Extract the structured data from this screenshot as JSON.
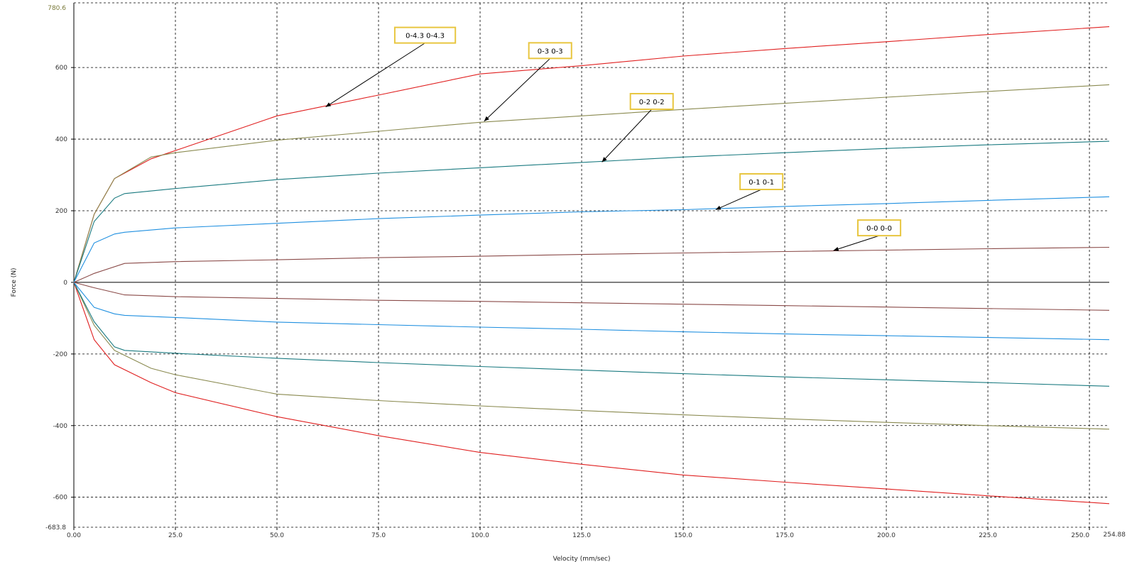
{
  "header_fragment": "",
  "chart_data": {
    "type": "line",
    "xlabel": "Velocity (mm/sec)",
    "ylabel": "Force (N)",
    "xlim": [
      0,
      254.88
    ],
    "ylim": [
      -683.8,
      780.6
    ],
    "x_ticks": [
      "0.00",
      "25.0",
      "50.0",
      "75.0",
      "100.0",
      "125.0",
      "150.0",
      "175.0",
      "200.0",
      "225.0",
      "250.0"
    ],
    "x_tick_values": [
      0,
      25,
      50,
      75,
      100,
      125,
      150,
      175,
      200,
      225,
      250
    ],
    "y_ticks": [
      "600",
      "400",
      "200",
      "0",
      "-200",
      "-400",
      "-600"
    ],
    "y_tick_values": [
      600,
      400,
      200,
      0,
      -200,
      -400,
      -600
    ],
    "x_max_label": "254.88",
    "y_max_label": "780.6",
    "y_min_label": "-683.8",
    "grid": true,
    "series": [
      {
        "name": "0-4.3 0-4.3",
        "color": "#e02020",
        "compression": [
          [
            0,
            0
          ],
          [
            5,
            190
          ],
          [
            10,
            290
          ],
          [
            19,
            345
          ],
          [
            25,
            368
          ],
          [
            50,
            465
          ],
          [
            75,
            523
          ],
          [
            100,
            582
          ],
          [
            125,
            605
          ],
          [
            150,
            632
          ],
          [
            175,
            653
          ],
          [
            200,
            672
          ],
          [
            225,
            692
          ],
          [
            254.88,
            714
          ]
        ],
        "rebound": [
          [
            0,
            0
          ],
          [
            5,
            -160
          ],
          [
            10,
            -230
          ],
          [
            19,
            -280
          ],
          [
            25,
            -308
          ],
          [
            50,
            -375
          ],
          [
            75,
            -428
          ],
          [
            100,
            -475
          ],
          [
            125,
            -508
          ],
          [
            150,
            -538
          ],
          [
            175,
            -558
          ],
          [
            200,
            -577
          ],
          [
            225,
            -596
          ],
          [
            254.88,
            -618
          ]
        ]
      },
      {
        "name": "0-3 0-3",
        "color": "#8a8a50",
        "compression": [
          [
            0,
            0
          ],
          [
            5,
            190
          ],
          [
            10,
            290
          ],
          [
            19,
            350
          ],
          [
            25,
            362
          ],
          [
            50,
            397
          ],
          [
            75,
            422
          ],
          [
            100,
            447
          ],
          [
            125,
            465
          ],
          [
            150,
            483
          ],
          [
            175,
            500
          ],
          [
            200,
            517
          ],
          [
            225,
            533
          ],
          [
            254.88,
            552
          ]
        ],
        "rebound": [
          [
            0,
            0
          ],
          [
            5,
            -120
          ],
          [
            10,
            -190
          ],
          [
            19,
            -240
          ],
          [
            25,
            -258
          ],
          [
            50,
            -312
          ],
          [
            75,
            -330
          ],
          [
            100,
            -345
          ],
          [
            125,
            -358
          ],
          [
            150,
            -370
          ],
          [
            175,
            -381
          ],
          [
            200,
            -391
          ],
          [
            225,
            -400
          ],
          [
            254.88,
            -410
          ]
        ]
      },
      {
        "name": "0-2 0-2",
        "color": "#1a7a80",
        "compression": [
          [
            0,
            0
          ],
          [
            5,
            170
          ],
          [
            10,
            235
          ],
          [
            12.5,
            248
          ],
          [
            25,
            262
          ],
          [
            50,
            287
          ],
          [
            75,
            305
          ],
          [
            100,
            320
          ],
          [
            125,
            335
          ],
          [
            150,
            350
          ],
          [
            175,
            362
          ],
          [
            200,
            374
          ],
          [
            225,
            384
          ],
          [
            254.88,
            394
          ]
        ],
        "rebound": [
          [
            0,
            0
          ],
          [
            5,
            -110
          ],
          [
            10,
            -180
          ],
          [
            12.5,
            -190
          ],
          [
            25,
            -198
          ],
          [
            50,
            -212
          ],
          [
            75,
            -224
          ],
          [
            100,
            -235
          ],
          [
            125,
            -245
          ],
          [
            150,
            -255
          ],
          [
            175,
            -264
          ],
          [
            200,
            -272
          ],
          [
            225,
            -280
          ],
          [
            254.88,
            -290
          ]
        ]
      },
      {
        "name": "0-1 0-1",
        "color": "#2090e0",
        "compression": [
          [
            0,
            0
          ],
          [
            5,
            110
          ],
          [
            10,
            135
          ],
          [
            12.5,
            140
          ],
          [
            25,
            152
          ],
          [
            50,
            165
          ],
          [
            75,
            178
          ],
          [
            100,
            188
          ],
          [
            125,
            197
          ],
          [
            150,
            203
          ],
          [
            175,
            212
          ],
          [
            200,
            220
          ],
          [
            225,
            229
          ],
          [
            254.88,
            239
          ]
        ],
        "rebound": [
          [
            0,
            0
          ],
          [
            5,
            -70
          ],
          [
            10,
            -88
          ],
          [
            12.5,
            -92
          ],
          [
            25,
            -98
          ],
          [
            50,
            -111
          ],
          [
            75,
            -118
          ],
          [
            100,
            -125
          ],
          [
            125,
            -131
          ],
          [
            150,
            -138
          ],
          [
            175,
            -144
          ],
          [
            200,
            -149
          ],
          [
            225,
            -154
          ],
          [
            254.88,
            -160
          ]
        ]
      },
      {
        "name": "0-0 0-0",
        "color": "#8a4a48",
        "compression": [
          [
            0,
            0
          ],
          [
            5,
            25
          ],
          [
            12.5,
            53
          ],
          [
            25,
            58
          ],
          [
            50,
            63
          ],
          [
            75,
            69
          ],
          [
            100,
            73
          ],
          [
            125,
            78
          ],
          [
            150,
            82
          ],
          [
            175,
            86
          ],
          [
            200,
            90
          ],
          [
            225,
            94
          ],
          [
            254.88,
            98
          ]
        ],
        "rebound": [
          [
            0,
            0
          ],
          [
            5,
            -15
          ],
          [
            12.5,
            -35
          ],
          [
            25,
            -40
          ],
          [
            50,
            -45
          ],
          [
            75,
            -50
          ],
          [
            100,
            -53
          ],
          [
            125,
            -57
          ],
          [
            150,
            -61
          ],
          [
            175,
            -65
          ],
          [
            200,
            -69
          ],
          [
            225,
            -73
          ],
          [
            254.88,
            -78
          ]
        ]
      }
    ],
    "annotations": [
      {
        "text": "0-4.3 0-4.3",
        "box_at": [
          79,
          712
        ],
        "arrow_to": [
          62,
          490
        ]
      },
      {
        "text": "0-3 0-3",
        "box_at": [
          112,
          669
        ],
        "arrow_to": [
          101,
          450
        ]
      },
      {
        "text": "0-2 0-2",
        "box_at": [
          137,
          527
        ],
        "arrow_to": [
          130,
          336
        ]
      },
      {
        "text": "0-1 0-1",
        "box_at": [
          164,
          303
        ],
        "arrow_to": [
          158,
          203
        ]
      },
      {
        "text": "0-0 0-0",
        "box_at": [
          193,
          174
        ],
        "arrow_to": [
          187,
          89
        ]
      }
    ]
  }
}
